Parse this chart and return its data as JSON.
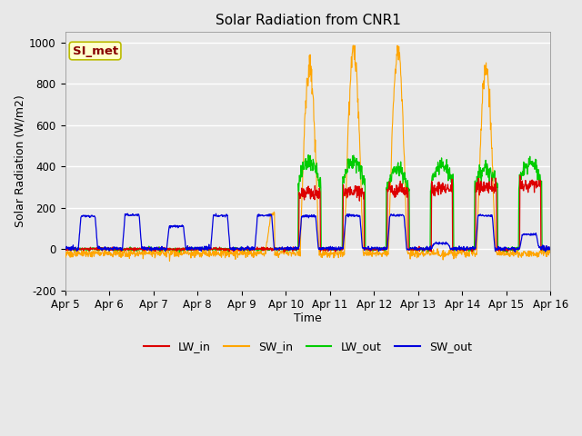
{
  "title": "Solar Radiation from CNR1",
  "xlabel": "Time",
  "ylabel": "Solar Radiation (W/m2)",
  "ylim": [
    -200,
    1050
  ],
  "xlim": [
    0,
    11
  ],
  "x_tick_labels": [
    "Apr 5",
    "Apr 6",
    "Apr 7",
    "Apr 8",
    "Apr 9",
    "Apr 10",
    "Apr 11",
    "Apr 12",
    "Apr 13",
    "Apr 14",
    "Apr 15",
    "Apr 16"
  ],
  "x_tick_positions": [
    0,
    1,
    2,
    3,
    4,
    5,
    6,
    7,
    8,
    9,
    10,
    11
  ],
  "y_tick_labels": [
    "-200",
    "0",
    "200",
    "400",
    "600",
    "800",
    "1000"
  ],
  "y_tick_values": [
    -200,
    0,
    200,
    400,
    600,
    800,
    1000
  ],
  "colors": {
    "LW_in": "#dd0000",
    "SW_in": "#ffa500",
    "LW_out": "#00cc00",
    "SW_out": "#0000dd",
    "background": "#e8e8e8",
    "grid": "#ffffff",
    "annotation_bg": "#ffffcc",
    "annotation_border": "#bbbb00",
    "annotation_text": "#880000"
  },
  "annotation_text": "SI_met",
  "legend": [
    "LW_in",
    "SW_in",
    "LW_out",
    "SW_out"
  ]
}
